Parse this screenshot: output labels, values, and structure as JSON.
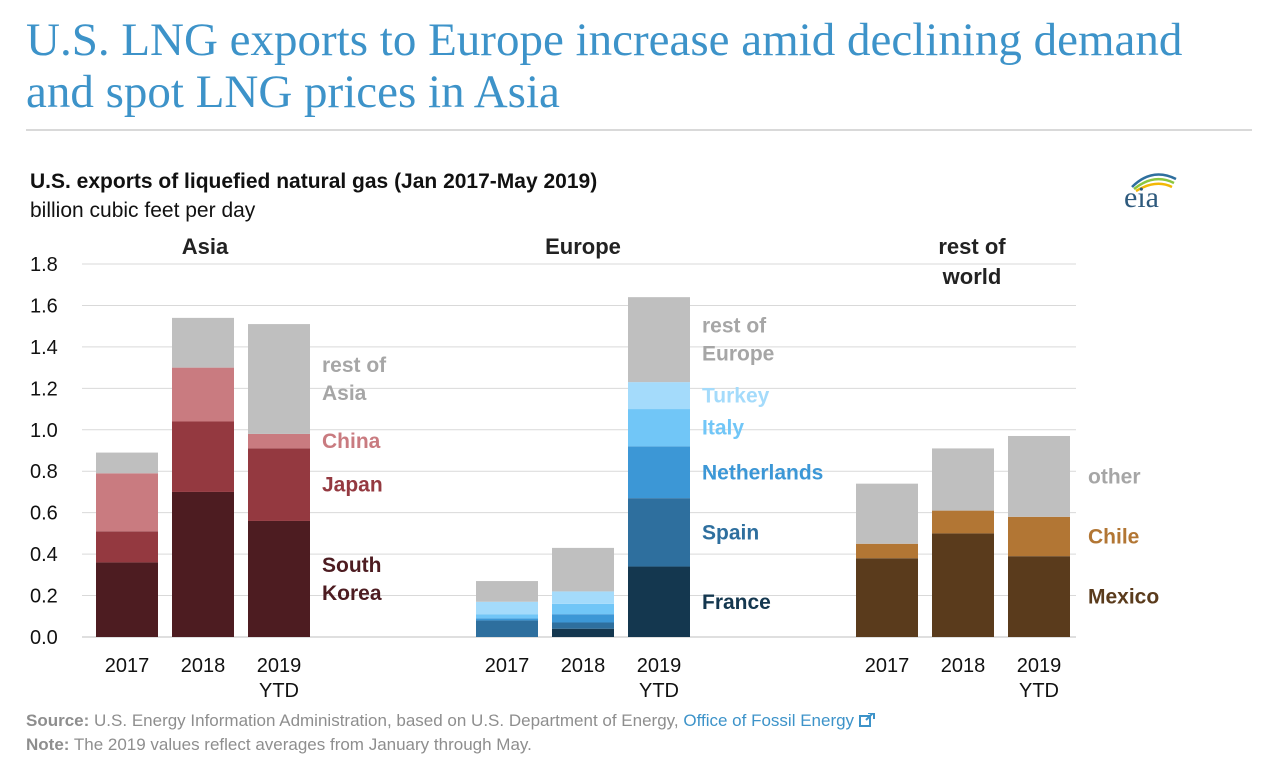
{
  "headline": "U.S. LNG exports to Europe increase amid declining demand and spot LNG prices in Asia",
  "logo": {
    "text": "eia",
    "icon": "eia-logo-icon"
  },
  "chart_data": {
    "type": "bar",
    "stacked": true,
    "title": "U.S. exports of liquefied natural gas (Jan 2017-May 2019)",
    "units": "billion cubic feet per day",
    "ylim": [
      0,
      1.8
    ],
    "yticks": [
      "0.0",
      "0.2",
      "0.4",
      "0.6",
      "0.8",
      "1.0",
      "1.2",
      "1.4",
      "1.6",
      "1.8"
    ],
    "grid": true,
    "panels": [
      {
        "name": "Asia",
        "categories": [
          "2017",
          "2018",
          "2019 YTD"
        ],
        "series": [
          {
            "name": "South Korea",
            "color": "#4d1c21",
            "values": [
              0.36,
              0.7,
              0.56
            ]
          },
          {
            "name": "Japan",
            "color": "#943940",
            "values": [
              0.15,
              0.34,
              0.35
            ]
          },
          {
            "name": "China",
            "color": "#c97b80",
            "values": [
              0.28,
              0.26,
              0.07
            ]
          },
          {
            "name": "rest of Asia",
            "color": "#bfbfbf",
            "values": [
              0.1,
              0.24,
              0.53
            ]
          }
        ]
      },
      {
        "name": "Europe",
        "categories": [
          "2017",
          "2018",
          "2019 YTD"
        ],
        "series": [
          {
            "name": "France",
            "color": "#14374f",
            "values": [
              0.0,
              0.04,
              0.34
            ]
          },
          {
            "name": "Spain",
            "color": "#2e6f9e",
            "values": [
              0.08,
              0.03,
              0.33
            ]
          },
          {
            "name": "Netherlands",
            "color": "#3c97d6",
            "values": [
              0.01,
              0.04,
              0.25
            ]
          },
          {
            "name": "Italy",
            "color": "#71c6f7",
            "values": [
              0.02,
              0.05,
              0.18
            ]
          },
          {
            "name": "Turkey",
            "color": "#a4dbfb",
            "values": [
              0.06,
              0.06,
              0.13
            ]
          },
          {
            "name": "rest of Europe",
            "color": "#bfbfbf",
            "values": [
              0.1,
              0.21,
              0.41
            ]
          }
        ]
      },
      {
        "name": "rest of world",
        "categories": [
          "2017",
          "2018",
          "2019 YTD"
        ],
        "series": [
          {
            "name": "Mexico",
            "color": "#5a3b1c",
            "values": [
              0.38,
              0.5,
              0.39
            ]
          },
          {
            "name": "Chile",
            "color": "#b27634",
            "values": [
              0.07,
              0.11,
              0.19
            ]
          },
          {
            "name": "other",
            "color": "#bfbfbf",
            "values": [
              0.29,
              0.3,
              0.39
            ]
          }
        ]
      }
    ]
  },
  "footer": {
    "source_label": "Source:",
    "source_text": "U.S. Energy Information Administration, based on U.S. Department of Energy,",
    "source_link": "Office of Fossil Energy",
    "note_label": "Note:",
    "note_text": "The 2019 values reflect averages from January through May."
  }
}
